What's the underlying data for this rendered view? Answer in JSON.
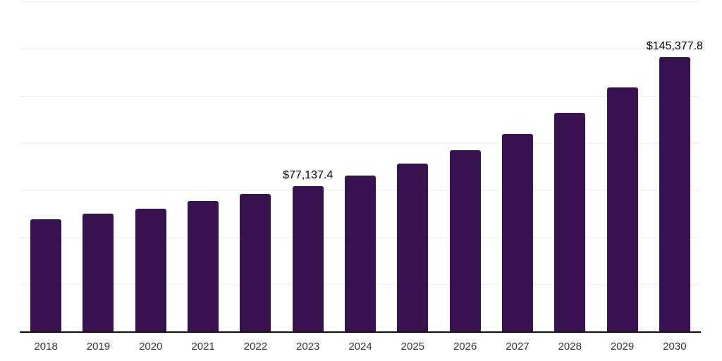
{
  "chart_data": {
    "type": "bar",
    "title": "",
    "xlabel": "",
    "ylabel": "",
    "categories": [
      "2018",
      "2019",
      "2020",
      "2021",
      "2022",
      "2023",
      "2024",
      "2025",
      "2026",
      "2027",
      "2028",
      "2029",
      "2030"
    ],
    "values": [
      59450,
      62450,
      65050,
      69200,
      72900,
      77137.4,
      82550,
      89100,
      96100,
      104600,
      115900,
      129250,
      145377.8
    ],
    "data_labels": [
      {
        "category": "2023",
        "text": "$77,137.4"
      },
      {
        "category": "2030",
        "text": "$145,377.8"
      }
    ],
    "ylim": [
      0,
      175000
    ],
    "y_gridline_step": 25000,
    "y_axis_labels_visible": false,
    "legend_position": "none",
    "grid": "horizontal",
    "colors": {
      "bar": "#38124E",
      "gridline": "#f0f0f0",
      "axis_line": "#111111",
      "tick_label": "#333333",
      "data_label": "#000000",
      "background": "#ffffff"
    }
  }
}
